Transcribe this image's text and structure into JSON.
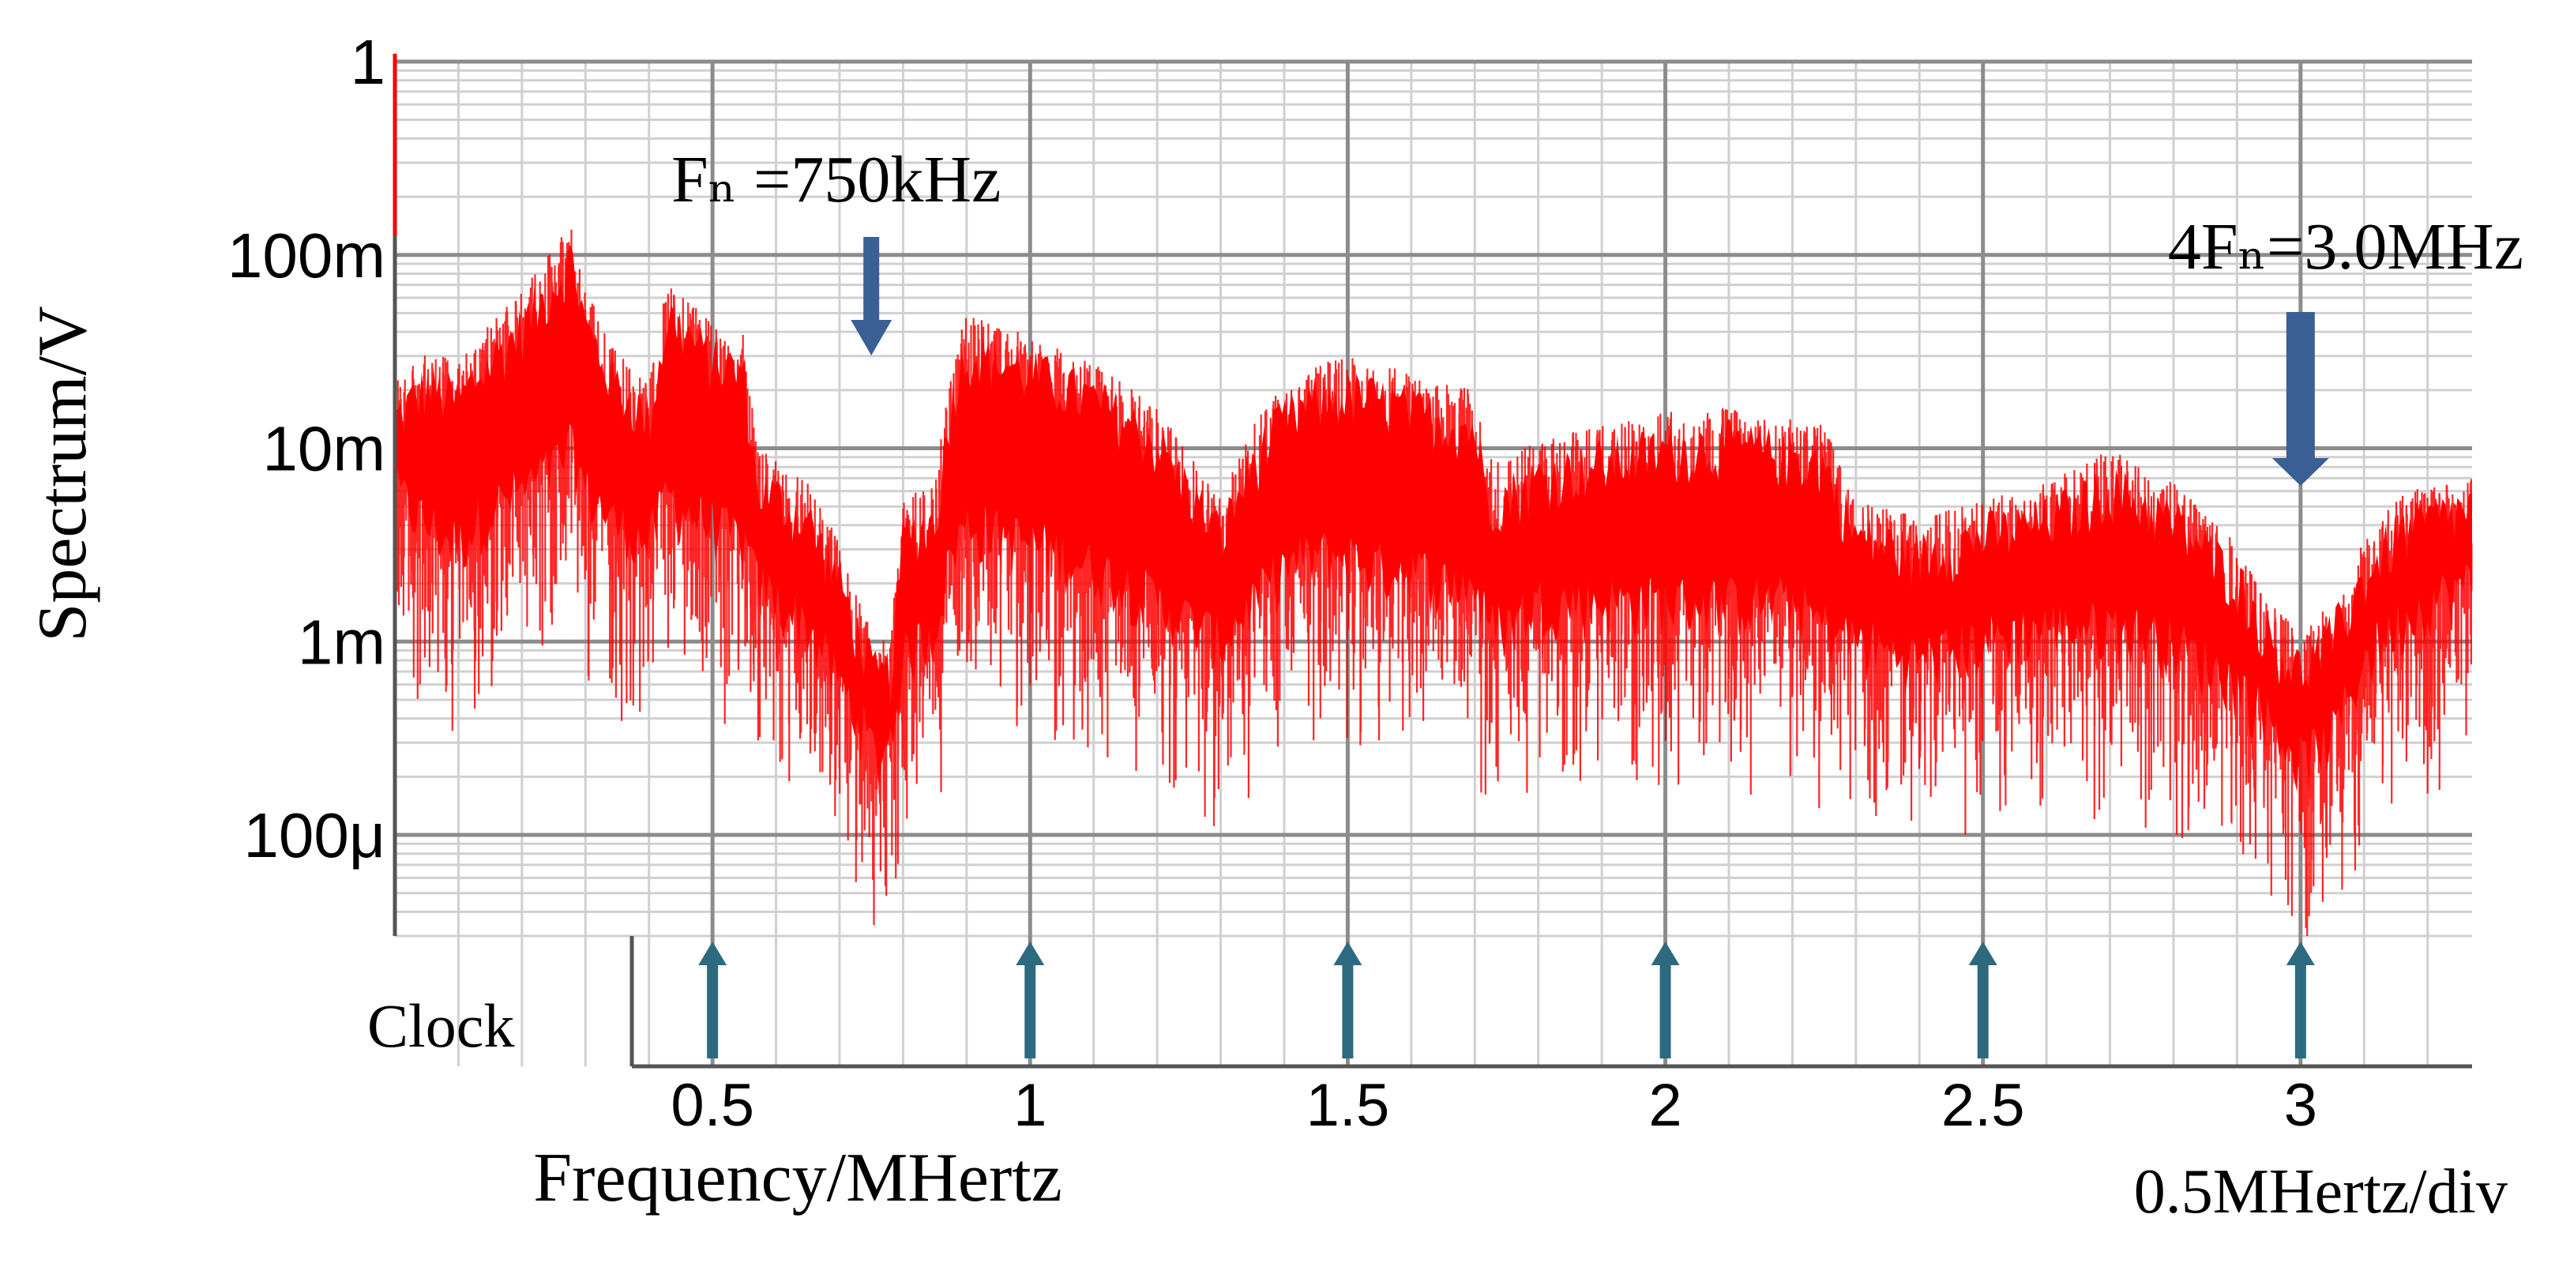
{
  "chart_data": {
    "type": "line",
    "ylabel": "Spectrum/V",
    "xlabel": "Frequency/MHertz",
    "x_scale_note": "0.5MHertz/div",
    "xlim": [
      0.0,
      3.27
    ],
    "ylim": [
      3e-05,
      1.0
    ],
    "yscale": "log",
    "grid": true,
    "x_ticks": [
      {
        "value": 0.5,
        "label": "0.5"
      },
      {
        "value": 1.0,
        "label": "1"
      },
      {
        "value": 1.5,
        "label": "1.5"
      },
      {
        "value": 2.0,
        "label": "2"
      },
      {
        "value": 2.5,
        "label": "2.5"
      },
      {
        "value": 3.0,
        "label": "3"
      }
    ],
    "y_ticks": [
      {
        "value": 1.0,
        "label": "1"
      },
      {
        "value": 0.1,
        "label": "100m"
      },
      {
        "value": 0.01,
        "label": "10m"
      },
      {
        "value": 0.001,
        "label": "1m"
      },
      {
        "value": 0.0001,
        "label": "100μ"
      }
    ],
    "series": [
      {
        "color": "#ff0000",
        "x": [
          0.0,
          0.05,
          0.1,
          0.15,
          0.2,
          0.25,
          0.28,
          0.3,
          0.35,
          0.4,
          0.43,
          0.45,
          0.5,
          0.55,
          0.57,
          0.6,
          0.65,
          0.7,
          0.73,
          0.76,
          0.78,
          0.8,
          0.85,
          0.88,
          0.9,
          0.95,
          1.0,
          1.05,
          1.1,
          1.15,
          1.2,
          1.3,
          1.35,
          1.4,
          1.45,
          1.5,
          1.55,
          1.6,
          1.65,
          1.7,
          1.72,
          1.75,
          1.8,
          1.9,
          2.0,
          2.1,
          2.2,
          2.25,
          2.3,
          2.4,
          2.5,
          2.6,
          2.7,
          2.8,
          2.9,
          2.95,
          3.0,
          3.05,
          3.1,
          3.15,
          3.2,
          3.27
        ],
        "y_upper": [
          0.02,
          0.03,
          0.025,
          0.04,
          0.06,
          0.1,
          0.14,
          0.06,
          0.03,
          0.02,
          0.07,
          0.06,
          0.04,
          0.035,
          0.009,
          0.008,
          0.006,
          0.003,
          0.0015,
          0.0009,
          0.001,
          0.005,
          0.006,
          0.03,
          0.045,
          0.04,
          0.035,
          0.03,
          0.025,
          0.02,
          0.015,
          0.005,
          0.012,
          0.02,
          0.025,
          0.027,
          0.025,
          0.022,
          0.02,
          0.018,
          0.008,
          0.008,
          0.01,
          0.012,
          0.014,
          0.015,
          0.013,
          0.012,
          0.005,
          0.004,
          0.005,
          0.006,
          0.009,
          0.006,
          0.003,
          0.0015,
          0.001,
          0.0015,
          0.003,
          0.005,
          0.006,
          0.007
        ],
        "y_lower": [
          0.0015,
          0.001,
          0.0008,
          0.0012,
          0.0015,
          0.002,
          0.0025,
          0.0015,
          0.001,
          0.0008,
          0.0015,
          0.0012,
          0.001,
          0.0008,
          0.0005,
          0.0004,
          0.0003,
          0.00015,
          0.0001,
          6e-05,
          8e-05,
          0.0002,
          0.0003,
          0.0008,
          0.001,
          0.0009,
          0.0008,
          0.0007,
          0.0006,
          0.0005,
          0.0004,
          0.00025,
          0.0004,
          0.0006,
          0.0007,
          0.0007,
          0.0006,
          0.0006,
          0.0005,
          0.0005,
          0.0003,
          0.0003,
          0.0004,
          0.0004,
          0.0004,
          0.0004,
          0.0004,
          0.0003,
          0.00025,
          0.0002,
          0.00025,
          0.0003,
          0.0003,
          0.00025,
          0.00015,
          0.0001,
          6e-05,
          8e-05,
          0.0002,
          0.0003,
          0.0004,
          0.0005
        ]
      }
    ],
    "annotations": [
      {
        "text": "Fₙ =750kHz",
        "x": 0.75,
        "arrow_y": 0.04,
        "arrow_direction": "down"
      },
      {
        "text": "4Fₙ=3.0MHz",
        "x": 3.0,
        "arrow_y": 0.008,
        "arrow_direction": "down"
      }
    ],
    "clock": {
      "label": "Clock",
      "markers": [
        0.5,
        1.0,
        1.5,
        2.0,
        2.5,
        3.0
      ]
    }
  }
}
